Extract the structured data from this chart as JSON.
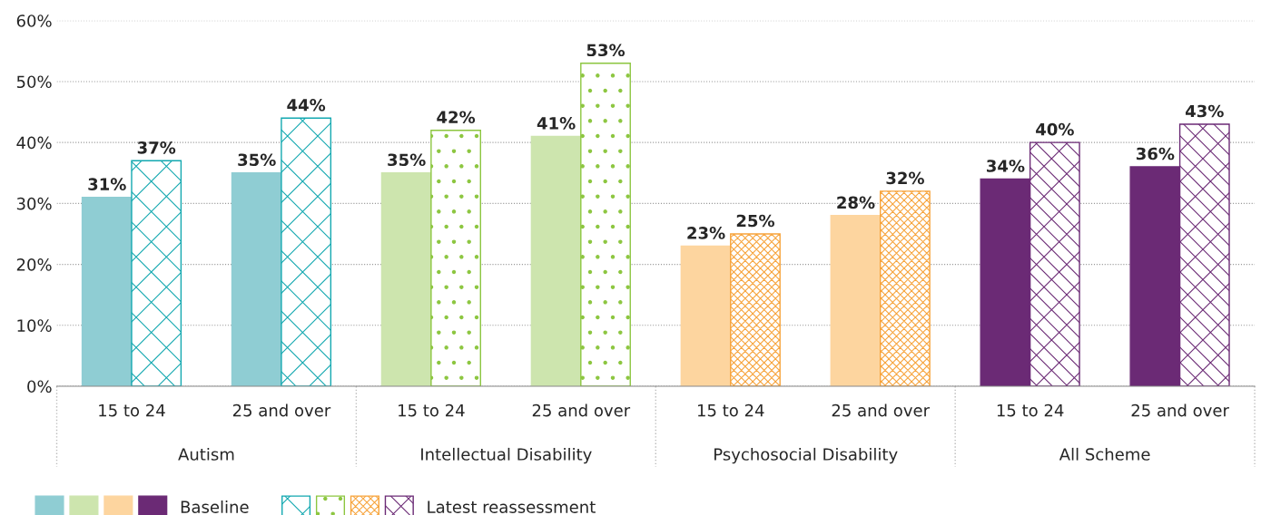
{
  "chart_data": {
    "type": "bar",
    "categories": [
      "15 to 24",
      "25 and over",
      "15 to 24",
      "25 and over",
      "15 to 24",
      "25 and over",
      "15 to 24",
      "25 and over"
    ],
    "series": [
      {
        "name": "Baseline",
        "colors": [
          "#8fcdd3",
          "#8fcdd3",
          "#cde5ae",
          "#cde5ae",
          "#fdd59f",
          "#fdd59f",
          "#6b2a75",
          "#6b2a75"
        ],
        "values": [
          31,
          35,
          35,
          41,
          23,
          28,
          34,
          36
        ]
      },
      {
        "name": "Latest reassessment",
        "colors": [
          "#12a8b0",
          "#12a8b0",
          "#8cc63f",
          "#8cc63f",
          "#f7a33a",
          "#f7a33a",
          "#6b2a75",
          "#6b2a75"
        ],
        "values": [
          37,
          44,
          42,
          53,
          25,
          32,
          40,
          43
        ]
      }
    ],
    "value_labels": [
      [
        "31%",
        "35%",
        "35%",
        "41%",
        "23%",
        "28%",
        "34%",
        "36%"
      ],
      [
        "37%",
        "44%",
        "42%",
        "53%",
        "25%",
        "32%",
        "40%",
        "43%"
      ]
    ],
    "annotations": [
      "Autism",
      "Intellectual Disability",
      "Psychosocial Disability",
      "All Scheme"
    ],
    "ylim": [
      0,
      60
    ],
    "yticks": [
      {
        "value": 0,
        "label": "0%"
      },
      {
        "value": 10,
        "label": "10%"
      },
      {
        "value": 20,
        "label": "20%"
      },
      {
        "value": 30,
        "label": "30%"
      },
      {
        "value": 40,
        "label": "40%"
      },
      {
        "value": 50,
        "label": "50%"
      },
      {
        "value": 60,
        "label": "60%"
      }
    ],
    "grid": "y",
    "legend": "bottom left"
  }
}
